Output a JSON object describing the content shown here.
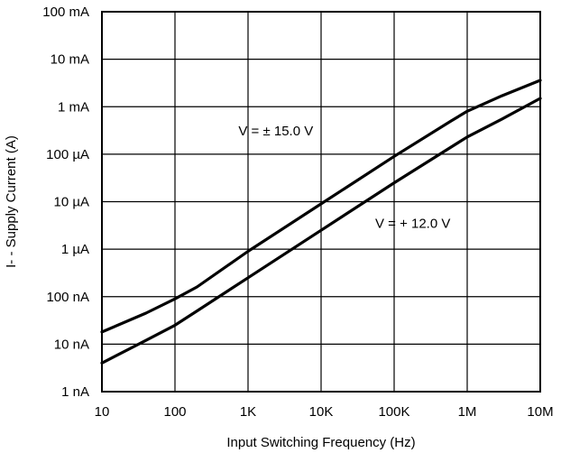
{
  "chart_data": {
    "type": "line",
    "xlabel": "Input Switching Frequency (Hz)",
    "ylabel": "I- - Supply Current (A)",
    "xscale": "log",
    "yscale": "log",
    "xlim": [
      10,
      10000000
    ],
    "ylim": [
      1e-09,
      0.1
    ],
    "grid": true,
    "x_ticks": [
      {
        "value": 10,
        "label": "10"
      },
      {
        "value": 100,
        "label": "100"
      },
      {
        "value": 1000,
        "label": "1K"
      },
      {
        "value": 10000,
        "label": "10K"
      },
      {
        "value": 100000,
        "label": "100K"
      },
      {
        "value": 1000000,
        "label": "1M"
      },
      {
        "value": 10000000,
        "label": "10M"
      }
    ],
    "y_ticks": [
      {
        "value": 1e-09,
        "label": "1 nA"
      },
      {
        "value": 1e-08,
        "label": "10 nA"
      },
      {
        "value": 1e-07,
        "label": "100 nA"
      },
      {
        "value": 1e-06,
        "label": "1 µA"
      },
      {
        "value": 1e-05,
        "label": "10 µA"
      },
      {
        "value": 0.0001,
        "label": "100 µA"
      },
      {
        "value": 0.001,
        "label": "1 mA"
      },
      {
        "value": 0.01,
        "label": "10 mA"
      },
      {
        "value": 0.1,
        "label": "100 mA"
      }
    ],
    "series": [
      {
        "x": [
          10,
          40,
          100,
          200,
          1000,
          10000,
          100000,
          600000,
          1000000,
          3000000,
          10000000
        ],
        "y": [
          1.8e-08,
          4.5e-08,
          9e-08,
          1.6e-07,
          9e-07,
          9e-06,
          9e-05,
          0.0005,
          0.0008,
          0.0017,
          0.0036
        ]
      },
      {
        "x": [
          10,
          40,
          100,
          200,
          1000,
          10000,
          100000,
          1000000,
          3000000,
          10000000
        ],
        "y": [
          4e-09,
          1.2e-08,
          2.5e-08,
          5e-08,
          2.5e-07,
          2.5e-06,
          2.5e-05,
          0.00023,
          0.00055,
          0.0015
        ]
      }
    ],
    "annotations": [
      {
        "text": "V = ± 15.0 V",
        "x": 2400,
        "y": 0.00025
      },
      {
        "text": "V = + 12.0 V",
        "x": 180000,
        "y": 2.8e-06
      }
    ]
  }
}
